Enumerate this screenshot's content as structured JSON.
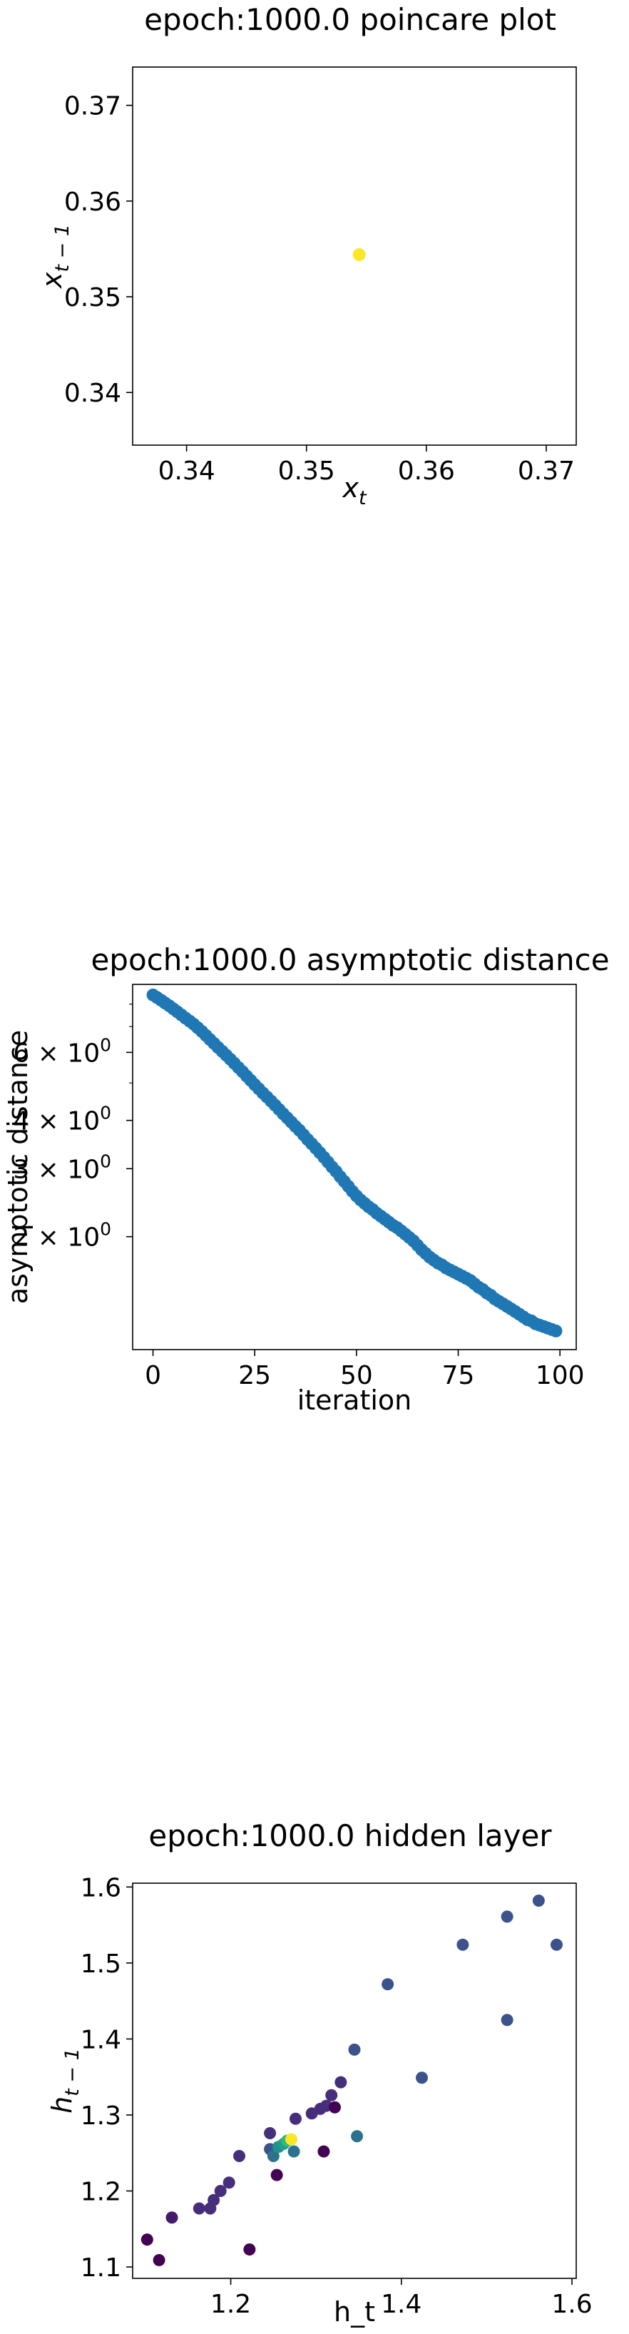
{
  "chart_data": [
    {
      "type": "scatter",
      "title": "epoch:1000.0 poincare plot",
      "xlabel_base": "x",
      "xlabel_sub": "t",
      "ylabel_base": "x",
      "ylabel_sub": "t − 1",
      "xlim": [
        0.3355,
        0.3725
      ],
      "ylim": [
        0.3345,
        0.374
      ],
      "xticks": [
        0.34,
        0.35,
        0.36,
        0.37
      ],
      "xtick_labels": [
        "0.34",
        "0.35",
        "0.36",
        "0.37"
      ],
      "yticks": [
        0.34,
        0.35,
        0.36,
        0.37
      ],
      "ytick_labels": [
        "0.34",
        "0.35",
        "0.36",
        "0.37"
      ],
      "grid": false,
      "points": [
        {
          "x": 0.3544,
          "y": 0.3544,
          "color": "#fde725"
        }
      ]
    },
    {
      "type": "scatter",
      "title": "epoch:1000.0 asymptotic distance",
      "xlabel": "iteration",
      "ylabel": "asymptotic distance",
      "y_scale": "log",
      "xlim": [
        -5,
        104
      ],
      "ylim": [
        1.02,
        9.0
      ],
      "xticks": [
        0,
        25,
        50,
        75,
        100
      ],
      "xtick_labels": [
        "0",
        "25",
        "50",
        "75",
        "100"
      ],
      "yticks": [
        2,
        3,
        4,
        6
      ],
      "ytick_base": [
        "2 × 10",
        "3 × 10",
        "4 × 10",
        "6 × 10"
      ],
      "ytick_exp": [
        "0",
        "0",
        "0",
        "0"
      ],
      "y_minor_ticks": [
        5,
        7,
        8
      ],
      "grid": false,
      "color": "#1f77b4",
      "x": [
        0,
        1,
        2,
        3,
        4,
        5,
        6,
        7,
        8,
        9,
        10,
        11,
        12,
        13,
        14,
        15,
        16,
        17,
        18,
        19,
        20,
        21,
        22,
        23,
        24,
        25,
        26,
        27,
        28,
        29,
        30,
        31,
        32,
        33,
        34,
        35,
        36,
        37,
        38,
        39,
        40,
        41,
        42,
        43,
        44,
        45,
        46,
        47,
        48,
        49,
        50,
        51,
        52,
        53,
        54,
        55,
        56,
        57,
        58,
        59,
        60,
        61,
        62,
        63,
        64,
        65,
        66,
        67,
        68,
        69,
        70,
        71,
        72,
        73,
        74,
        75,
        76,
        77,
        78,
        79,
        80,
        81,
        82,
        83,
        84,
        85,
        86,
        87,
        88,
        89,
        90,
        91,
        92,
        93,
        94,
        95,
        96,
        97,
        98,
        99
      ],
      "y": [
        8.45,
        8.32,
        8.19,
        8.05,
        7.92,
        7.78,
        7.64,
        7.5,
        7.36,
        7.23,
        7.1,
        6.95,
        6.8,
        6.64,
        6.48,
        6.33,
        6.18,
        6.04,
        5.9,
        5.76,
        5.62,
        5.48,
        5.35,
        5.21,
        5.08,
        4.95,
        4.83,
        4.71,
        4.6,
        4.49,
        4.38,
        4.27,
        4.16,
        4.06,
        3.96,
        3.86,
        3.77,
        3.67,
        3.57,
        3.48,
        3.39,
        3.3,
        3.21,
        3.12,
        3.03,
        2.95,
        2.86,
        2.78,
        2.7,
        2.62,
        2.55,
        2.49,
        2.44,
        2.39,
        2.35,
        2.3,
        2.26,
        2.22,
        2.18,
        2.14,
        2.11,
        2.07,
        2.03,
        1.99,
        1.95,
        1.9,
        1.85,
        1.81,
        1.77,
        1.74,
        1.71,
        1.69,
        1.66,
        1.64,
        1.62,
        1.6,
        1.58,
        1.56,
        1.54,
        1.51,
        1.48,
        1.46,
        1.43,
        1.41,
        1.38,
        1.36,
        1.34,
        1.32,
        1.3,
        1.28,
        1.26,
        1.24,
        1.22,
        1.21,
        1.19,
        1.18,
        1.17,
        1.16,
        1.15,
        1.14
      ]
    },
    {
      "type": "scatter",
      "title": "epoch:1000.0 hidden layer",
      "xlabel": "h_t",
      "ylabel_base": "h",
      "ylabel_sub": "t − 1",
      "xlim": [
        1.085,
        1.605
      ],
      "ylim": [
        1.085,
        1.605
      ],
      "xticks": [
        1.2,
        1.4,
        1.6
      ],
      "xtick_labels": [
        "1.2",
        "1.4",
        "1.6"
      ],
      "yticks": [
        1.1,
        1.2,
        1.3,
        1.4,
        1.5,
        1.6
      ],
      "ytick_labels": [
        "1.1",
        "1.2",
        "1.3",
        "1.4",
        "1.5",
        "1.6"
      ],
      "grid": false,
      "points": [
        {
          "x": 1.102,
          "y": 1.136,
          "color": "#440154"
        },
        {
          "x": 1.116,
          "y": 1.109,
          "color": "#440154"
        },
        {
          "x": 1.131,
          "y": 1.165,
          "color": "#46196c"
        },
        {
          "x": 1.163,
          "y": 1.177,
          "color": "#472e7c"
        },
        {
          "x": 1.176,
          "y": 1.177,
          "color": "#472e7c"
        },
        {
          "x": 1.18,
          "y": 1.188,
          "color": "#472e7c"
        },
        {
          "x": 1.188,
          "y": 1.2,
          "color": "#472e7c"
        },
        {
          "x": 1.198,
          "y": 1.211,
          "color": "#472e7c"
        },
        {
          "x": 1.21,
          "y": 1.246,
          "color": "#472e7c"
        },
        {
          "x": 1.222,
          "y": 1.123,
          "color": "#440154"
        },
        {
          "x": 1.246,
          "y": 1.276,
          "color": "#472e7c"
        },
        {
          "x": 1.254,
          "y": 1.221,
          "color": "#440154"
        },
        {
          "x": 1.246,
          "y": 1.255,
          "color": "#3b528b"
        },
        {
          "x": 1.25,
          "y": 1.246,
          "color": "#2c728e"
        },
        {
          "x": 1.256,
          "y": 1.258,
          "color": "#21918c"
        },
        {
          "x": 1.262,
          "y": 1.262,
          "color": "#1f9e89"
        },
        {
          "x": 1.266,
          "y": 1.266,
          "color": "#35b779"
        },
        {
          "x": 1.271,
          "y": 1.268,
          "color": "#fde725"
        },
        {
          "x": 1.274,
          "y": 1.252,
          "color": "#2c728e"
        },
        {
          "x": 1.276,
          "y": 1.295,
          "color": "#472e7c"
        },
        {
          "x": 1.295,
          "y": 1.302,
          "color": "#472e7c"
        },
        {
          "x": 1.305,
          "y": 1.308,
          "color": "#472e7c"
        },
        {
          "x": 1.312,
          "y": 1.312,
          "color": "#472e7c"
        },
        {
          "x": 1.318,
          "y": 1.326,
          "color": "#472e7c"
        },
        {
          "x": 1.322,
          "y": 1.31,
          "color": "#440154"
        },
        {
          "x": 1.309,
          "y": 1.252,
          "color": "#440154"
        },
        {
          "x": 1.329,
          "y": 1.343,
          "color": "#472e7c"
        },
        {
          "x": 1.345,
          "y": 1.386,
          "color": "#3b528b"
        },
        {
          "x": 1.348,
          "y": 1.272,
          "color": "#2c728e"
        },
        {
          "x": 1.384,
          "y": 1.472,
          "color": "#3b528b"
        },
        {
          "x": 1.424,
          "y": 1.349,
          "color": "#3b528b"
        },
        {
          "x": 1.472,
          "y": 1.524,
          "color": "#3b528b"
        },
        {
          "x": 1.524,
          "y": 1.425,
          "color": "#3b528b"
        },
        {
          "x": 1.524,
          "y": 1.561,
          "color": "#3b528b"
        },
        {
          "x": 1.561,
          "y": 1.582,
          "color": "#3b528b"
        },
        {
          "x": 1.582,
          "y": 1.524,
          "color": "#3b528b"
        }
      ]
    }
  ]
}
